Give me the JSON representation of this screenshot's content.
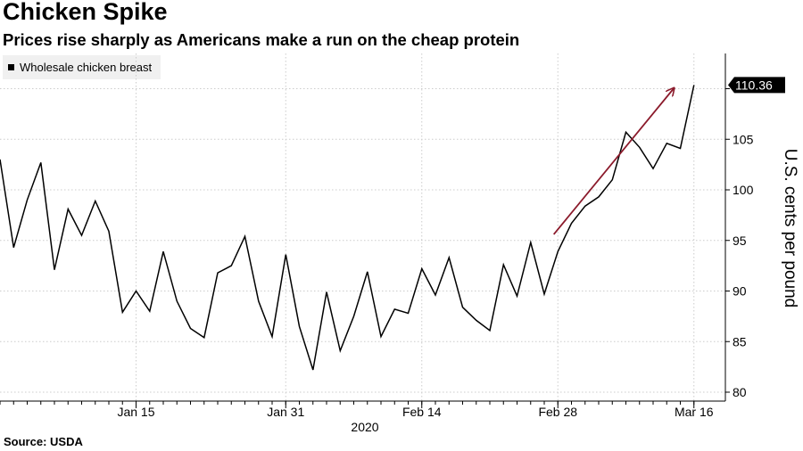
{
  "header": {
    "title": "Chicken Spike",
    "subtitle": "Prices rise sharply as Americans make a run on the cheap protein"
  },
  "footer": {
    "source": "Source: USDA"
  },
  "chart_data": {
    "type": "line",
    "series": [
      {
        "name": "Wholesale chicken breast",
        "color": "#000000",
        "values": [
          103.0,
          94.3,
          99.0,
          102.7,
          92.1,
          98.1,
          95.5,
          98.9,
          95.9,
          87.9,
          90.0,
          88.0,
          93.9,
          89.0,
          86.3,
          85.4,
          91.8,
          92.5,
          95.4,
          89.0,
          85.5,
          93.6,
          86.5,
          82.2,
          89.9,
          84.1,
          87.5,
          91.9,
          85.5,
          88.2,
          87.8,
          92.2,
          89.6,
          93.3,
          88.4,
          87.1,
          86.1,
          92.6,
          89.5,
          94.8,
          89.7,
          93.9,
          96.7,
          98.4,
          99.3,
          101.0,
          105.7,
          104.2,
          102.1,
          104.6,
          104.1,
          110.36
        ]
      }
    ],
    "x_ticks": [
      "Jan 15",
      "Jan 31",
      "Feb 14",
      "Feb 28",
      "Mar 16"
    ],
    "x_year_label": "2020",
    "y_ticks": [
      80,
      85,
      90,
      95,
      100,
      105
    ],
    "ylim": [
      79.5,
      113
    ],
    "ylabel": "U.S. cents per pound",
    "last_value": "110.36",
    "grid": true,
    "legend_position": "top-left",
    "annotation": {
      "type": "arrow",
      "color": "#8b1a2b",
      "from": [
        40.7,
        95.6
      ],
      "to": [
        49.5,
        110.0
      ]
    }
  }
}
